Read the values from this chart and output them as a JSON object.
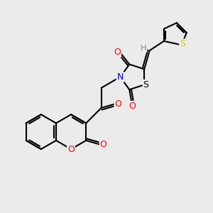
{
  "background_color": "#ebebeb",
  "figsize": [
    3.0,
    3.0
  ],
  "dpi": 100,
  "bond_color": "#000000",
  "bond_width": 1.5,
  "atom_colors": {
    "O": "#ff0000",
    "N": "#0000cc",
    "S_thiazolidine": "#000000",
    "S_thiophene": "#cccc00",
    "H": "#888888",
    "C": "#000000"
  },
  "font_size": 9,
  "font_size_small": 8
}
